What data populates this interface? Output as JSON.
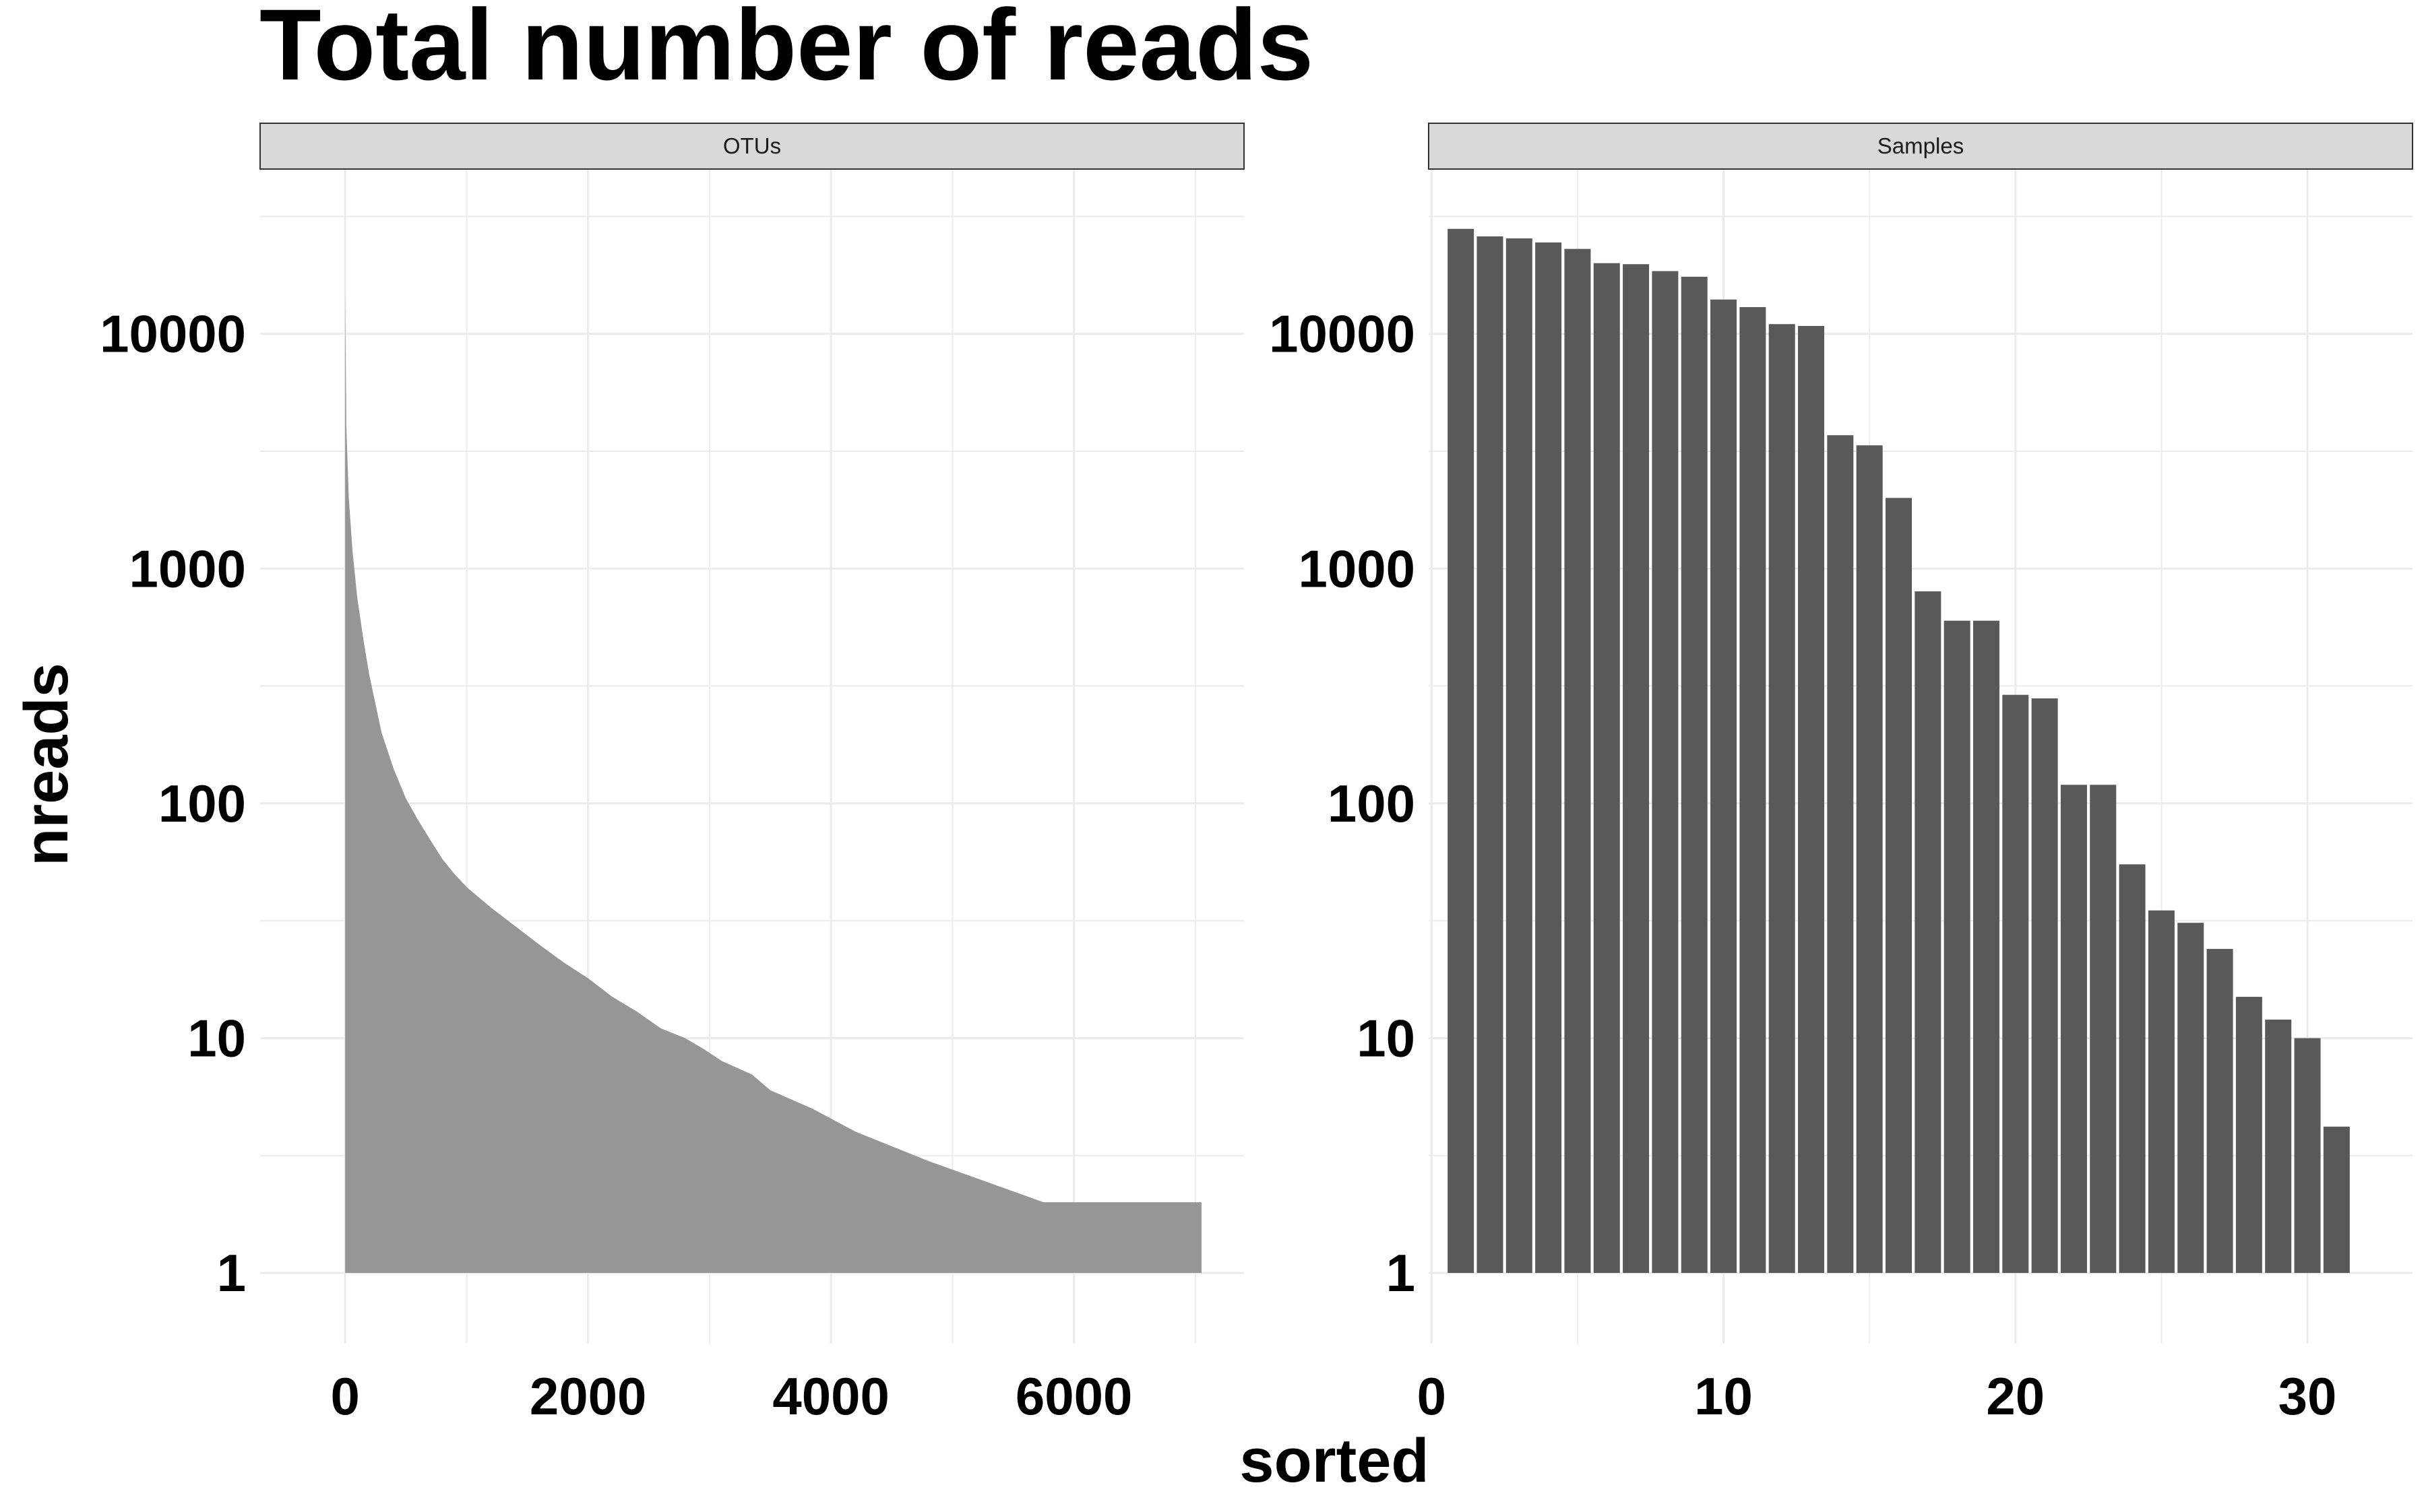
{
  "title": "Total number of reads",
  "xlabel": "sorted",
  "ylabel": "nreads",
  "colors": {
    "otu_fill": "#969696",
    "sample_fill": "#595959",
    "strip_fill": "#d9d9d9",
    "grid": "#ebebeb"
  },
  "chart_data": [
    {
      "type": "area",
      "panel": "OTUs",
      "x_ticks": [
        "0",
        "2000",
        "4000",
        "6000"
      ],
      "y_ticks": [
        "1",
        "10",
        "100",
        "1000",
        "10000"
      ],
      "y_scale": "log10",
      "xlim": [
        -700,
        7400
      ],
      "ylim": [
        0.5,
        50000
      ],
      "grid": true,
      "points": [
        {
          "x": 0,
          "y": 15000
        },
        {
          "x": 10,
          "y": 4000
        },
        {
          "x": 30,
          "y": 2000
        },
        {
          "x": 60,
          "y": 1200
        },
        {
          "x": 100,
          "y": 750
        },
        {
          "x": 150,
          "y": 500
        },
        {
          "x": 200,
          "y": 350
        },
        {
          "x": 300,
          "y": 200
        },
        {
          "x": 400,
          "y": 140
        },
        {
          "x": 500,
          "y": 105
        },
        {
          "x": 600,
          "y": 85
        },
        {
          "x": 700,
          "y": 70
        },
        {
          "x": 800,
          "y": 58
        },
        {
          "x": 900,
          "y": 50
        },
        {
          "x": 1000,
          "y": 44
        },
        {
          "x": 1200,
          "y": 36
        },
        {
          "x": 1400,
          "y": 30
        },
        {
          "x": 1600,
          "y": 25
        },
        {
          "x": 1800,
          "y": 21
        },
        {
          "x": 2000,
          "y": 18
        },
        {
          "x": 2200,
          "y": 15
        },
        {
          "x": 2400,
          "y": 13
        },
        {
          "x": 2600,
          "y": 11
        },
        {
          "x": 2800,
          "y": 10
        },
        {
          "x": 2950,
          "y": 9
        },
        {
          "x": 3100,
          "y": 8
        },
        {
          "x": 3350,
          "y": 7
        },
        {
          "x": 3500,
          "y": 6
        },
        {
          "x": 3850,
          "y": 5
        },
        {
          "x": 4200,
          "y": 4
        },
        {
          "x": 4800,
          "y": 3
        },
        {
          "x": 5750,
          "y": 2
        },
        {
          "x": 7050,
          "y": 2
        }
      ]
    },
    {
      "type": "bar",
      "panel": "Samples",
      "x_ticks": [
        "0",
        "10",
        "20",
        "30"
      ],
      "y_ticks": [
        "1",
        "10",
        "100",
        "1000",
        "10000"
      ],
      "y_scale": "log10",
      "xlim": [
        -0.1,
        33.6
      ],
      "ylim": [
        0.5,
        50000
      ],
      "grid": true,
      "x": [
        1,
        2,
        3,
        4,
        5,
        6,
        7,
        8,
        9,
        10,
        11,
        12,
        13,
        14,
        15,
        16,
        17,
        18,
        19,
        20,
        21,
        22,
        23,
        24,
        25,
        26,
        27,
        28,
        29,
        30,
        31
      ],
      "values": [
        28000,
        26000,
        25500,
        24500,
        23000,
        20000,
        19800,
        18500,
        17500,
        14000,
        13000,
        11000,
        10800,
        3700,
        3350,
        2000,
        800,
        600,
        600,
        290,
        280,
        120,
        120,
        55,
        35,
        31,
        24,
        15,
        12,
        10,
        4.2
      ]
    }
  ]
}
